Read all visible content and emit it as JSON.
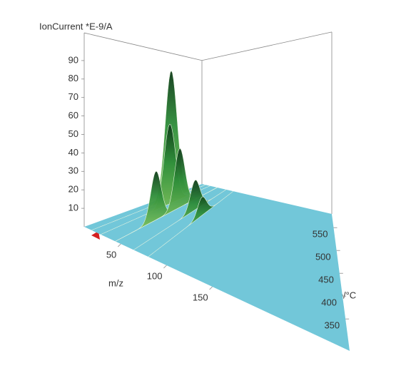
{
  "chart_data": {
    "type": "surface3d",
    "z_label": "IonCurrent *E-9/A",
    "x_label": "m/z",
    "y_label": "Temperature/°C",
    "xlim": [
      10,
      300
    ],
    "xticks": [
      50,
      100,
      150
    ],
    "ylim": [
      280,
      580
    ],
    "yticks": [
      350,
      400,
      450,
      500,
      550
    ],
    "zlim": [
      0,
      105
    ],
    "zticks": [
      10,
      20,
      30,
      40,
      50,
      60,
      70,
      80,
      90
    ],
    "floor_color": "#72c7d9",
    "color": "#3e9a3e",
    "peaks": [
      {
        "mz": 18,
        "temperature": 490,
        "value": 92
      },
      {
        "mz": 28,
        "temperature": 470,
        "value": 55
      },
      {
        "mz": 44,
        "temperature": 400,
        "value": 30
      },
      {
        "mz": 44,
        "temperature": 470,
        "value": 40
      },
      {
        "mz": 64,
        "temperature": 480,
        "value": 20
      },
      {
        "mz": 80,
        "temperature": 470,
        "value": 12
      }
    ]
  }
}
